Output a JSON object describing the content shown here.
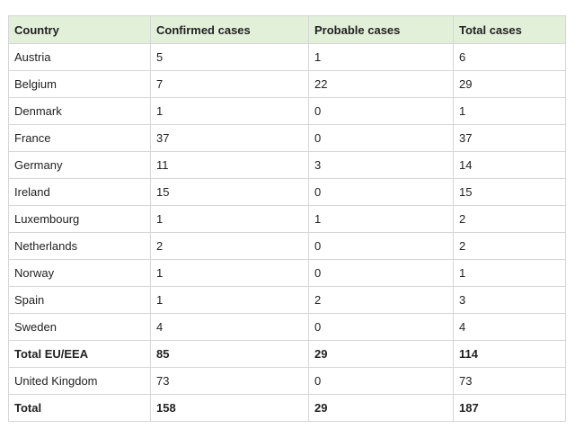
{
  "table": {
    "headers": [
      "Country",
      "Confirmed cases",
      "Probable cases",
      "Total cases"
    ],
    "rows": [
      {
        "country": "Austria",
        "confirmed": "5",
        "probable": "1",
        "total": "6",
        "bold": false
      },
      {
        "country": "Belgium",
        "confirmed": "7",
        "probable": "22",
        "total": "29",
        "bold": false
      },
      {
        "country": "Denmark",
        "confirmed": "1",
        "probable": "0",
        "total": "1",
        "bold": false
      },
      {
        "country": "France",
        "confirmed": "37",
        "probable": "0",
        "total": "37",
        "bold": false
      },
      {
        "country": "Germany",
        "confirmed": "11",
        "probable": "3",
        "total": "14",
        "bold": false
      },
      {
        "country": "Ireland",
        "confirmed": "15",
        "probable": "0",
        "total": "15",
        "bold": false
      },
      {
        "country": "Luxembourg",
        "confirmed": "1",
        "probable": "1",
        "total": "2",
        "bold": false
      },
      {
        "country": "Netherlands",
        "confirmed": "2",
        "probable": "0",
        "total": "2",
        "bold": false
      },
      {
        "country": "Norway",
        "confirmed": "1",
        "probable": "0",
        "total": "1",
        "bold": false
      },
      {
        "country": "Spain",
        "confirmed": "1",
        "probable": "2",
        "total": "3",
        "bold": false
      },
      {
        "country": "Sweden",
        "confirmed": "4",
        "probable": "0",
        "total": "4",
        "bold": false
      },
      {
        "country": "Total EU/EEA",
        "confirmed": "85",
        "probable": "29",
        "total": "114",
        "bold": true
      },
      {
        "country": "United Kingdom",
        "confirmed": "73",
        "probable": "0",
        "total": "73",
        "bold": false
      },
      {
        "country": "Total",
        "confirmed": "158",
        "probable": "29",
        "total": "187",
        "bold": true
      }
    ]
  },
  "colors": {
    "header_background": "#e2efd9",
    "border": "#d6d6d6",
    "text": "#222222"
  }
}
